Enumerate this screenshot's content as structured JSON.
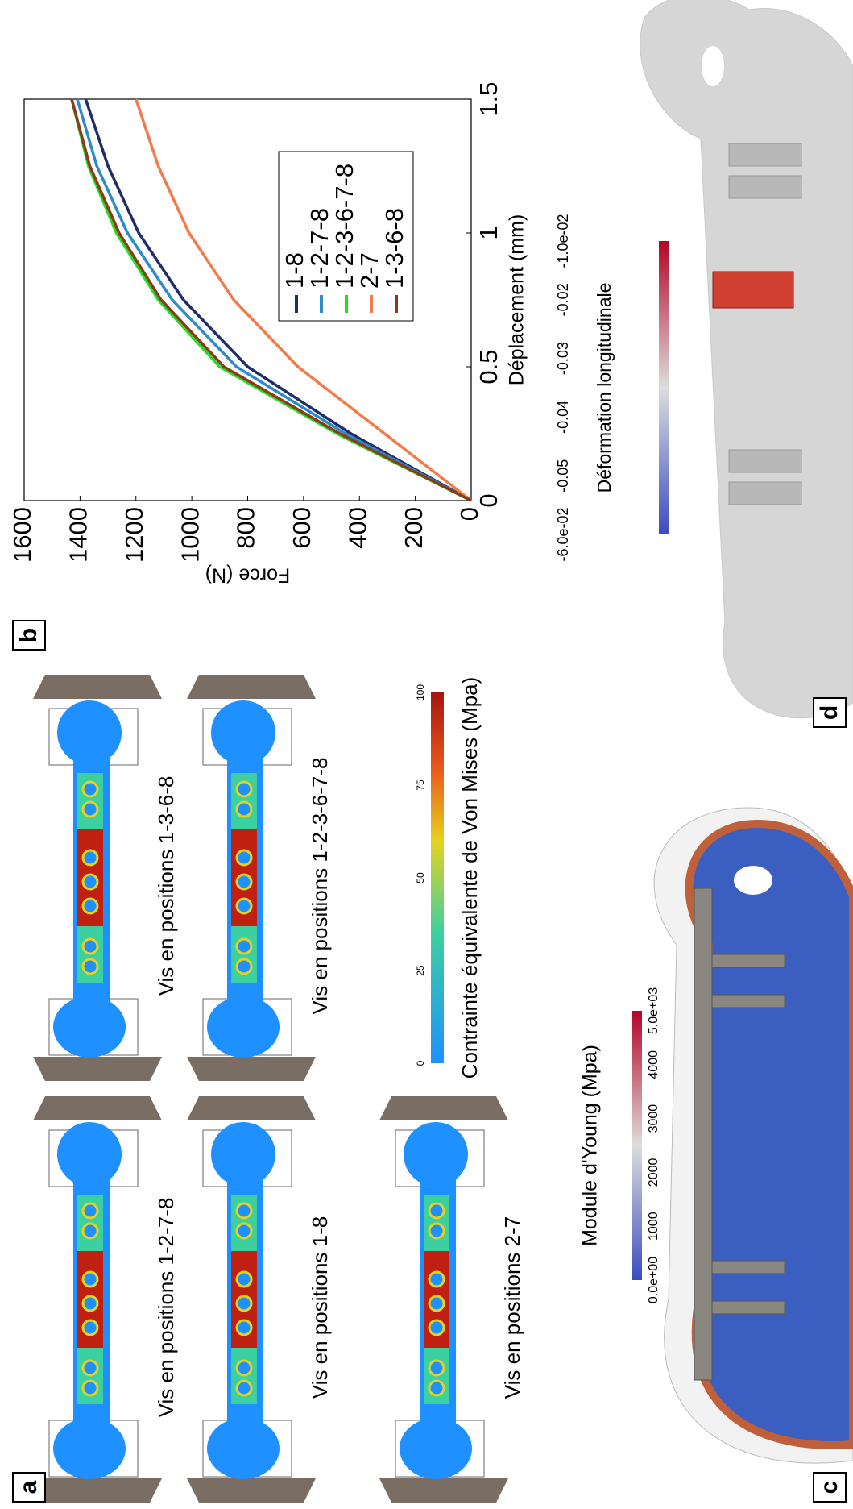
{
  "panels": {
    "a": {
      "label": "a",
      "cases": [
        "Vis en positions 1-2-7-8",
        "Vis en positions 1-3-6-8",
        "Vis en positions 1-8",
        "Vis en positions 1-2-3-6-7-8",
        "Vis en positions 2-7"
      ],
      "colorbar": {
        "title": "Contrainte équivalente de Von Mises (Mpa)",
        "ticks": [
          "0",
          "25",
          "50",
          "75",
          "100"
        ]
      }
    },
    "b": {
      "label": "b"
    },
    "c": {
      "label": "c",
      "colorbar": {
        "title": "Module d'Young (Mpa)",
        "ticks": [
          "0.0e+00",
          "1000",
          "2000",
          "3000",
          "4000",
          "5.0e+03"
        ]
      }
    },
    "d": {
      "label": "d",
      "colorbar": {
        "title": "Déformation longitudinale",
        "ticks": [
          "-6.0e-02",
          "-0.05",
          "-0.04",
          "-0.03",
          "-0.02",
          "-1.0e-02"
        ]
      }
    }
  },
  "chart_data": {
    "type": "line",
    "x_label": "Déplacement (mm)",
    "y_label": "Force (N)",
    "x": [
      0,
      0.25,
      0.5,
      0.75,
      1,
      1.25,
      1.5
    ],
    "series": [
      {
        "name": "1-8",
        "color": "#1f2d6b",
        "values": [
          0,
          430,
          800,
          1030,
          1190,
          1300,
          1380
        ]
      },
      {
        "name": "1-2-7-8",
        "color": "#2e8bc9",
        "values": [
          0,
          450,
          840,
          1070,
          1230,
          1340,
          1410
        ]
      },
      {
        "name": "1-2-3-6-7-8",
        "color": "#22dd22",
        "values": [
          0,
          480,
          900,
          1120,
          1270,
          1370,
          1430
        ]
      },
      {
        "name": "2-7",
        "color": "#f47a4a",
        "values": [
          0,
          310,
          620,
          850,
          1010,
          1120,
          1200
        ]
      },
      {
        "name": "1-3-6-8",
        "color": "#8b3a1a",
        "values": [
          0,
          470,
          885,
          1110,
          1260,
          1365,
          1430
        ]
      }
    ],
    "xlim": [
      0,
      1.5
    ],
    "ylim": [
      0,
      1600
    ],
    "xticks": [
      0,
      0.5,
      1,
      1.5
    ],
    "yticks": [
      0,
      200,
      400,
      600,
      800,
      1000,
      1200,
      1400,
      1600
    ],
    "grid": false,
    "legend": "lower right"
  }
}
